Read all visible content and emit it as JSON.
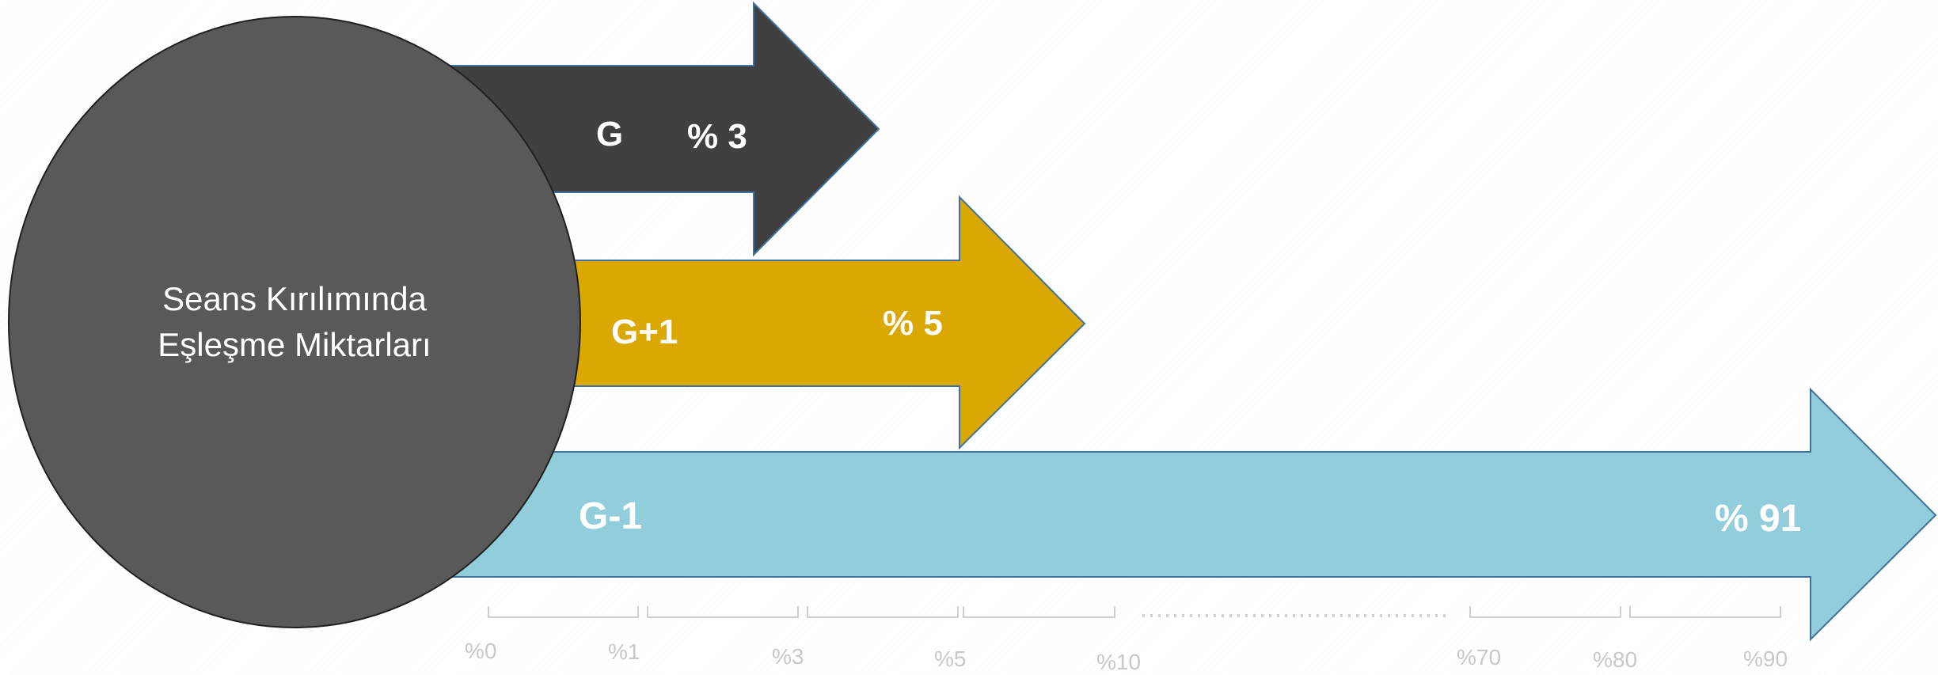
{
  "center": {
    "line1": "Seans Kırılımında",
    "line2": "Eşleşme Miktarları",
    "color": "#595959"
  },
  "arrows": [
    {
      "name": "G",
      "percent": "% 3",
      "value": 3,
      "color": "#404040"
    },
    {
      "name": "G+1",
      "percent": "% 5",
      "value": 5,
      "color": "#DAA800"
    },
    {
      "name": "G-1",
      "percent": "% 91",
      "value": 91,
      "color": "#92CDDC"
    }
  ],
  "scale": {
    "ticks": [
      "%0",
      "%1",
      "%3",
      "%5",
      "%10",
      "%70",
      "%80",
      "%90"
    ]
  }
}
